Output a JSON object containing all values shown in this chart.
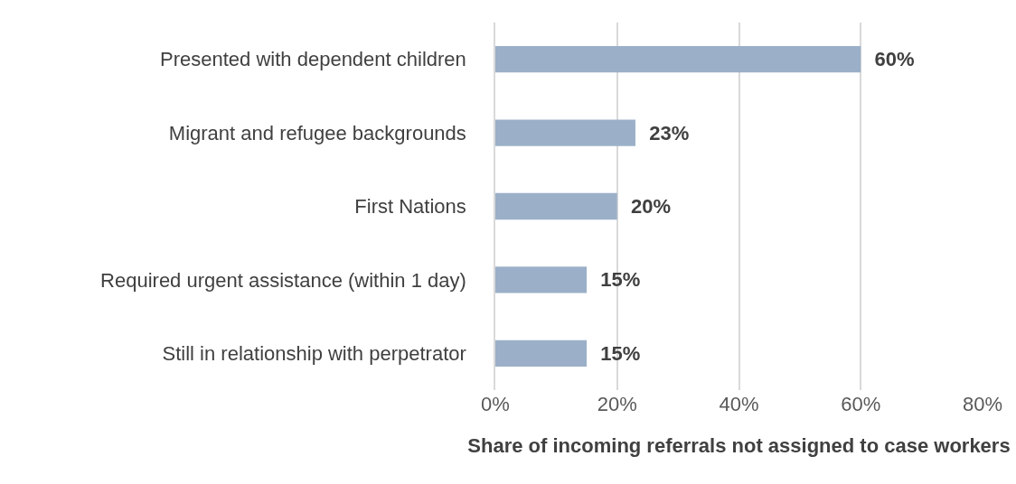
{
  "chart_data": {
    "type": "bar",
    "orientation": "horizontal",
    "xlabel": "Share of incoming referrals not assigned to case workers",
    "categories": [
      "Presented with dependent children",
      "Migrant and refugee backgrounds",
      "First Nations",
      "Required urgent assistance (within 1 day)",
      "Still in relationship with perpetrator"
    ],
    "values": [
      60,
      23,
      20,
      15,
      15
    ],
    "value_labels": [
      "60%",
      "23%",
      "20%",
      "15%",
      "15%"
    ],
    "color": "#9bb0c8",
    "xlim": [
      0,
      80
    ],
    "xticks": [
      {
        "value": 0,
        "label": "0%"
      },
      {
        "value": 20,
        "label": "20%"
      },
      {
        "value": 40,
        "label": "40%"
      },
      {
        "value": 60,
        "label": "60%"
      },
      {
        "value": 80,
        "label": "80%"
      }
    ],
    "grid": "x"
  }
}
